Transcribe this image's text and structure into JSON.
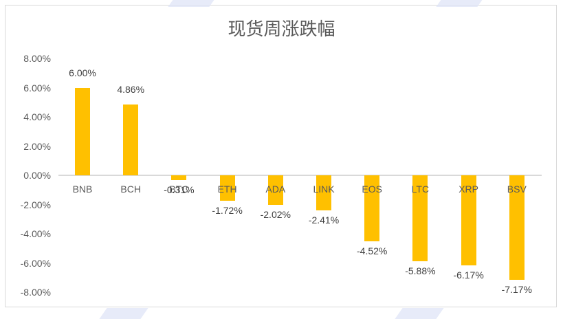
{
  "chart_data": {
    "type": "bar",
    "title": "现货周涨跌幅",
    "xlabel": "",
    "ylabel": "",
    "categories": [
      "BNB",
      "BCH",
      "BTC",
      "ETH",
      "ADA",
      "LINK",
      "EOS",
      "LTC",
      "XRP",
      "BSV"
    ],
    "values": [
      6.0,
      4.86,
      -0.31,
      -1.72,
      -2.02,
      -2.41,
      -4.52,
      -5.88,
      -6.17,
      -7.17
    ],
    "value_labels": [
      "6.00%",
      "4.86%",
      "-0.31%",
      "-1.72%",
      "-2.02%",
      "-2.41%",
      "-4.52%",
      "-5.88%",
      "-6.17%",
      "-7.17%"
    ],
    "unit": "%",
    "ylim": [
      -8,
      8
    ],
    "yticks": [
      8,
      6,
      4,
      2,
      0,
      -2,
      -4,
      -6,
      -8
    ],
    "ytick_labels": [
      "8.00%",
      "6.00%",
      "4.00%",
      "2.00%",
      "0.00%",
      "-2.00%",
      "-4.00%",
      "-6.00%",
      "-8.00%"
    ],
    "grid": false,
    "legend": null,
    "bar_color": "#ffc000"
  }
}
